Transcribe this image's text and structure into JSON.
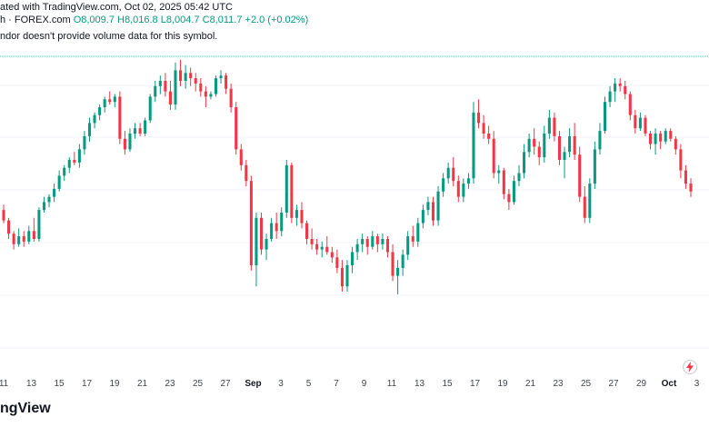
{
  "header": {
    "published": "ated with TradingView.com, Oct 02, 2025 05:42 UTC",
    "symbol": "h · FOREX.com",
    "open": "O8,009.7",
    "high": "H8,016.8",
    "low": "L8,004.7",
    "close": "C8,011.7",
    "change": "+2.0 (+0.02%)",
    "note": "ndor doesn't provide volume data for this symbol."
  },
  "brand": "ngView",
  "colors": {
    "up": "#089981",
    "down": "#f23645",
    "grid": "#f0f3fa",
    "last_line": "#089981"
  },
  "icons": [
    "lightning-icon"
  ],
  "chart_data": {
    "type": "candlestick",
    "x_tick_labels": [
      "11",
      "13",
      "15",
      "17",
      "19",
      "21",
      "23",
      "25",
      "27",
      "Sep",
      "3",
      "5",
      "7",
      "9",
      "11",
      "13",
      "15",
      "17",
      "19",
      "21",
      "23",
      "25",
      "27",
      "29",
      "Oct",
      "3"
    ],
    "y_axis_visible": false,
    "grid": true,
    "note": "Price values estimated on a relative scale (0 = lowest low, 100 = highest high); no y tick labels are visible.",
    "candles": [
      {
        "o": 41,
        "h": 43,
        "l": 36,
        "c": 37
      },
      {
        "o": 37,
        "h": 38,
        "l": 30,
        "c": 32
      },
      {
        "o": 32,
        "h": 33,
        "l": 26,
        "c": 28
      },
      {
        "o": 28,
        "h": 34,
        "l": 27,
        "c": 31
      },
      {
        "o": 31,
        "h": 33,
        "l": 27,
        "c": 29
      },
      {
        "o": 29,
        "h": 35,
        "l": 28,
        "c": 33
      },
      {
        "o": 33,
        "h": 38,
        "l": 29,
        "c": 30
      },
      {
        "o": 30,
        "h": 42,
        "l": 29,
        "c": 41
      },
      {
        "o": 41,
        "h": 46,
        "l": 40,
        "c": 44
      },
      {
        "o": 44,
        "h": 47,
        "l": 42,
        "c": 46
      },
      {
        "o": 46,
        "h": 51,
        "l": 44,
        "c": 49
      },
      {
        "o": 49,
        "h": 56,
        "l": 48,
        "c": 54
      },
      {
        "o": 54,
        "h": 58,
        "l": 52,
        "c": 57
      },
      {
        "o": 57,
        "h": 61,
        "l": 55,
        "c": 60
      },
      {
        "o": 60,
        "h": 63,
        "l": 58,
        "c": 59
      },
      {
        "o": 59,
        "h": 66,
        "l": 57,
        "c": 64
      },
      {
        "o": 64,
        "h": 71,
        "l": 62,
        "c": 69
      },
      {
        "o": 69,
        "h": 76,
        "l": 67,
        "c": 74
      },
      {
        "o": 74,
        "h": 78,
        "l": 72,
        "c": 77
      },
      {
        "o": 77,
        "h": 81,
        "l": 75,
        "c": 80
      },
      {
        "o": 80,
        "h": 84,
        "l": 78,
        "c": 83
      },
      {
        "o": 83,
        "h": 86,
        "l": 81,
        "c": 82
      },
      {
        "o": 82,
        "h": 85,
        "l": 80,
        "c": 84
      },
      {
        "o": 84,
        "h": 86,
        "l": 66,
        "c": 68
      },
      {
        "o": 68,
        "h": 71,
        "l": 62,
        "c": 64
      },
      {
        "o": 64,
        "h": 72,
        "l": 63,
        "c": 70
      },
      {
        "o": 70,
        "h": 74,
        "l": 68,
        "c": 72
      },
      {
        "o": 72,
        "h": 74,
        "l": 69,
        "c": 70
      },
      {
        "o": 70,
        "h": 76,
        "l": 69,
        "c": 75
      },
      {
        "o": 75,
        "h": 85,
        "l": 74,
        "c": 84
      },
      {
        "o": 84,
        "h": 90,
        "l": 82,
        "c": 88
      },
      {
        "o": 88,
        "h": 92,
        "l": 85,
        "c": 90
      },
      {
        "o": 90,
        "h": 93,
        "l": 84,
        "c": 86
      },
      {
        "o": 86,
        "h": 90,
        "l": 79,
        "c": 81
      },
      {
        "o": 81,
        "h": 97,
        "l": 79,
        "c": 94
      },
      {
        "o": 94,
        "h": 98,
        "l": 88,
        "c": 90
      },
      {
        "o": 90,
        "h": 96,
        "l": 87,
        "c": 93
      },
      {
        "o": 93,
        "h": 95,
        "l": 88,
        "c": 91
      },
      {
        "o": 91,
        "h": 93,
        "l": 86,
        "c": 89
      },
      {
        "o": 89,
        "h": 91,
        "l": 84,
        "c": 86
      },
      {
        "o": 86,
        "h": 88,
        "l": 80,
        "c": 84
      },
      {
        "o": 84,
        "h": 86,
        "l": 83,
        "c": 85
      },
      {
        "o": 85,
        "h": 92,
        "l": 84,
        "c": 91
      },
      {
        "o": 91,
        "h": 94,
        "l": 89,
        "c": 92
      },
      {
        "o": 92,
        "h": 93,
        "l": 85,
        "c": 87
      },
      {
        "o": 87,
        "h": 89,
        "l": 78,
        "c": 80
      },
      {
        "o": 80,
        "h": 82,
        "l": 62,
        "c": 64
      },
      {
        "o": 64,
        "h": 66,
        "l": 56,
        "c": 58
      },
      {
        "o": 58,
        "h": 60,
        "l": 50,
        "c": 52
      },
      {
        "o": 52,
        "h": 54,
        "l": 18,
        "c": 20
      },
      {
        "o": 20,
        "h": 40,
        "l": 12,
        "c": 38
      },
      {
        "o": 38,
        "h": 40,
        "l": 24,
        "c": 26
      },
      {
        "o": 26,
        "h": 32,
        "l": 22,
        "c": 30
      },
      {
        "o": 30,
        "h": 38,
        "l": 29,
        "c": 36
      },
      {
        "o": 36,
        "h": 40,
        "l": 30,
        "c": 33
      },
      {
        "o": 33,
        "h": 42,
        "l": 31,
        "c": 40
      },
      {
        "o": 40,
        "h": 60,
        "l": 38,
        "c": 58
      },
      {
        "o": 58,
        "h": 59,
        "l": 36,
        "c": 38
      },
      {
        "o": 38,
        "h": 43,
        "l": 35,
        "c": 41
      },
      {
        "o": 41,
        "h": 44,
        "l": 34,
        "c": 36
      },
      {
        "o": 36,
        "h": 37,
        "l": 28,
        "c": 30
      },
      {
        "o": 30,
        "h": 34,
        "l": 26,
        "c": 28
      },
      {
        "o": 28,
        "h": 30,
        "l": 24,
        "c": 26
      },
      {
        "o": 26,
        "h": 29,
        "l": 23,
        "c": 27
      },
      {
        "o": 27,
        "h": 31,
        "l": 24,
        "c": 25
      },
      {
        "o": 25,
        "h": 27,
        "l": 21,
        "c": 23
      },
      {
        "o": 23,
        "h": 26,
        "l": 17,
        "c": 19
      },
      {
        "o": 19,
        "h": 22,
        "l": 10,
        "c": 12
      },
      {
        "o": 12,
        "h": 22,
        "l": 10,
        "c": 20
      },
      {
        "o": 20,
        "h": 27,
        "l": 17,
        "c": 25
      },
      {
        "o": 25,
        "h": 30,
        "l": 22,
        "c": 28
      },
      {
        "o": 28,
        "h": 32,
        "l": 25,
        "c": 30
      },
      {
        "o": 30,
        "h": 31,
        "l": 24,
        "c": 27
      },
      {
        "o": 27,
        "h": 33,
        "l": 26,
        "c": 31
      },
      {
        "o": 31,
        "h": 32,
        "l": 25,
        "c": 28
      },
      {
        "o": 28,
        "h": 32,
        "l": 26,
        "c": 30
      },
      {
        "o": 30,
        "h": 31,
        "l": 23,
        "c": 25
      },
      {
        "o": 25,
        "h": 28,
        "l": 14,
        "c": 16
      },
      {
        "o": 16,
        "h": 22,
        "l": 9,
        "c": 19
      },
      {
        "o": 19,
        "h": 26,
        "l": 16,
        "c": 24
      },
      {
        "o": 24,
        "h": 33,
        "l": 22,
        "c": 31
      },
      {
        "o": 31,
        "h": 35,
        "l": 27,
        "c": 29
      },
      {
        "o": 29,
        "h": 38,
        "l": 27,
        "c": 36
      },
      {
        "o": 36,
        "h": 43,
        "l": 34,
        "c": 41
      },
      {
        "o": 41,
        "h": 46,
        "l": 39,
        "c": 44
      },
      {
        "o": 44,
        "h": 46,
        "l": 35,
        "c": 37
      },
      {
        "o": 37,
        "h": 50,
        "l": 35,
        "c": 48
      },
      {
        "o": 48,
        "h": 55,
        "l": 46,
        "c": 53
      },
      {
        "o": 53,
        "h": 59,
        "l": 51,
        "c": 57
      },
      {
        "o": 57,
        "h": 61,
        "l": 50,
        "c": 52
      },
      {
        "o": 52,
        "h": 54,
        "l": 44,
        "c": 46
      },
      {
        "o": 46,
        "h": 53,
        "l": 44,
        "c": 51
      },
      {
        "o": 51,
        "h": 55,
        "l": 49,
        "c": 53
      },
      {
        "o": 53,
        "h": 82,
        "l": 51,
        "c": 78
      },
      {
        "o": 78,
        "h": 83,
        "l": 72,
        "c": 74
      },
      {
        "o": 74,
        "h": 77,
        "l": 68,
        "c": 70
      },
      {
        "o": 70,
        "h": 73,
        "l": 66,
        "c": 68
      },
      {
        "o": 68,
        "h": 71,
        "l": 53,
        "c": 55
      },
      {
        "o": 55,
        "h": 58,
        "l": 51,
        "c": 56
      },
      {
        "o": 56,
        "h": 57,
        "l": 45,
        "c": 47
      },
      {
        "o": 47,
        "h": 49,
        "l": 41,
        "c": 44
      },
      {
        "o": 44,
        "h": 54,
        "l": 43,
        "c": 52
      },
      {
        "o": 52,
        "h": 58,
        "l": 50,
        "c": 55
      },
      {
        "o": 55,
        "h": 66,
        "l": 53,
        "c": 63
      },
      {
        "o": 63,
        "h": 70,
        "l": 61,
        "c": 68
      },
      {
        "o": 68,
        "h": 72,
        "l": 62,
        "c": 65
      },
      {
        "o": 65,
        "h": 67,
        "l": 58,
        "c": 61
      },
      {
        "o": 61,
        "h": 73,
        "l": 59,
        "c": 70
      },
      {
        "o": 70,
        "h": 79,
        "l": 68,
        "c": 76
      },
      {
        "o": 76,
        "h": 78,
        "l": 67,
        "c": 69
      },
      {
        "o": 69,
        "h": 71,
        "l": 58,
        "c": 60
      },
      {
        "o": 60,
        "h": 65,
        "l": 53,
        "c": 63
      },
      {
        "o": 63,
        "h": 72,
        "l": 61,
        "c": 69
      },
      {
        "o": 69,
        "h": 74,
        "l": 60,
        "c": 62
      },
      {
        "o": 62,
        "h": 65,
        "l": 44,
        "c": 46
      },
      {
        "o": 46,
        "h": 50,
        "l": 36,
        "c": 38
      },
      {
        "o": 38,
        "h": 53,
        "l": 36,
        "c": 51
      },
      {
        "o": 51,
        "h": 67,
        "l": 49,
        "c": 64
      },
      {
        "o": 64,
        "h": 74,
        "l": 62,
        "c": 71
      },
      {
        "o": 71,
        "h": 84,
        "l": 70,
        "c": 82
      },
      {
        "o": 82,
        "h": 88,
        "l": 80,
        "c": 86
      },
      {
        "o": 86,
        "h": 91,
        "l": 82,
        "c": 89
      },
      {
        "o": 89,
        "h": 91,
        "l": 86,
        "c": 88
      },
      {
        "o": 88,
        "h": 90,
        "l": 83,
        "c": 85
      },
      {
        "o": 85,
        "h": 86,
        "l": 75,
        "c": 77
      },
      {
        "o": 77,
        "h": 79,
        "l": 70,
        "c": 72
      },
      {
        "o": 72,
        "h": 78,
        "l": 71,
        "c": 76
      },
      {
        "o": 76,
        "h": 77,
        "l": 69,
        "c": 70
      },
      {
        "o": 70,
        "h": 71,
        "l": 64,
        "c": 66
      },
      {
        "o": 66,
        "h": 72,
        "l": 62,
        "c": 70
      },
      {
        "o": 70,
        "h": 71,
        "l": 64,
        "c": 67
      },
      {
        "o": 67,
        "h": 72,
        "l": 66,
        "c": 71
      },
      {
        "o": 71,
        "h": 72,
        "l": 67,
        "c": 68
      },
      {
        "o": 68,
        "h": 69,
        "l": 62,
        "c": 64
      },
      {
        "o": 64,
        "h": 66,
        "l": 53,
        "c": 56
      },
      {
        "o": 56,
        "h": 58,
        "l": 49,
        "c": 51
      },
      {
        "o": 51,
        "h": 53,
        "l": 46,
        "c": 48
      }
    ]
  }
}
